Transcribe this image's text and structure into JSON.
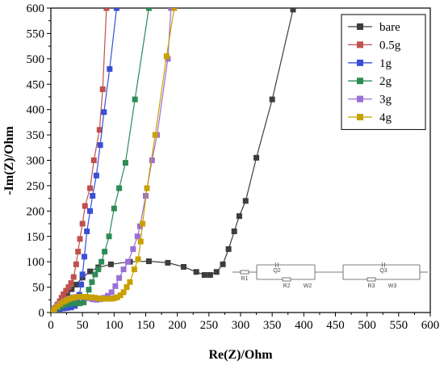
{
  "chart_data": {
    "type": "scatter",
    "xlabel": "Re(Z)/Ohm",
    "ylabel": "-Im(Z)/Ohm",
    "xlim": [
      0,
      600
    ],
    "ylim": [
      0,
      600
    ],
    "x_ticks": [
      "0",
      "50",
      "100",
      "150",
      "200",
      "250",
      "300",
      "350",
      "400",
      "450",
      "500",
      "550",
      "600"
    ],
    "y_ticks": [
      "0",
      "50",
      "100",
      "150",
      "200",
      "250",
      "300",
      "350",
      "400",
      "450",
      "500",
      "550",
      "600"
    ],
    "grid": false,
    "legend_position": "top-right",
    "series": [
      {
        "name": "bare",
        "color": "#3d3d3d",
        "marker": "square",
        "points": [
          [
            2,
            2
          ],
          [
            6,
            8
          ],
          [
            10,
            14
          ],
          [
            15,
            21
          ],
          [
            20,
            29
          ],
          [
            26,
            37
          ],
          [
            33,
            46
          ],
          [
            40,
            55
          ],
          [
            50,
            69
          ],
          [
            62,
            81
          ],
          [
            75,
            89
          ],
          [
            95,
            95
          ],
          [
            125,
            100
          ],
          [
            155,
            101
          ],
          [
            185,
            98
          ],
          [
            210,
            90
          ],
          [
            230,
            80
          ],
          [
            243,
            74
          ],
          [
            252,
            74
          ],
          [
            262,
            80
          ],
          [
            272,
            95
          ],
          [
            281,
            125
          ],
          [
            290,
            160
          ],
          [
            298,
            190
          ],
          [
            308,
            220
          ],
          [
            325,
            305
          ],
          [
            350,
            420
          ],
          [
            383,
            597
          ]
        ]
      },
      {
        "name": "0.5g",
        "color": "#c0504d",
        "marker": "square",
        "points": [
          [
            2,
            2
          ],
          [
            5,
            5
          ],
          [
            8,
            10
          ],
          [
            11,
            16
          ],
          [
            14,
            22
          ],
          [
            17,
            29
          ],
          [
            20,
            36
          ],
          [
            24,
            43
          ],
          [
            28,
            50
          ],
          [
            32,
            58
          ],
          [
            36,
            70
          ],
          [
            40,
            95
          ],
          [
            43,
            120
          ],
          [
            46,
            145
          ],
          [
            50,
            175
          ],
          [
            54,
            210
          ],
          [
            62,
            245
          ],
          [
            68,
            300
          ],
          [
            77,
            360
          ],
          [
            82,
            440
          ],
          [
            88,
            600
          ]
        ]
      },
      {
        "name": "1g",
        "color": "#3a4fd6",
        "marker": "square",
        "points": [
          [
            2,
            1
          ],
          [
            5,
            3
          ],
          [
            9,
            5
          ],
          [
            14,
            7
          ],
          [
            20,
            8
          ],
          [
            26,
            9
          ],
          [
            32,
            10
          ],
          [
            38,
            13
          ],
          [
            42,
            20
          ],
          [
            45,
            35
          ],
          [
            48,
            55
          ],
          [
            50,
            75
          ],
          [
            53,
            110
          ],
          [
            57,
            160
          ],
          [
            62,
            200
          ],
          [
            66,
            230
          ],
          [
            72,
            270
          ],
          [
            78,
            330
          ],
          [
            84,
            395
          ],
          [
            93,
            480
          ],
          [
            104,
            600
          ]
        ]
      },
      {
        "name": "2g",
        "color": "#2e8b57",
        "marker": "square",
        "points": [
          [
            2,
            1
          ],
          [
            6,
            5
          ],
          [
            11,
            9
          ],
          [
            16,
            12
          ],
          [
            22,
            15
          ],
          [
            28,
            17
          ],
          [
            34,
            18
          ],
          [
            40,
            18
          ],
          [
            46,
            18
          ],
          [
            52,
            20
          ],
          [
            56,
            30
          ],
          [
            60,
            45
          ],
          [
            65,
            60
          ],
          [
            70,
            75
          ],
          [
            75,
            85
          ],
          [
            80,
            100
          ],
          [
            85,
            120
          ],
          [
            92,
            150
          ],
          [
            100,
            205
          ],
          [
            108,
            245
          ],
          [
            118,
            295
          ],
          [
            133,
            420
          ],
          [
            155,
            600
          ]
        ]
      },
      {
        "name": "3g",
        "color": "#9b6fd6",
        "marker": "square",
        "points": [
          [
            2,
            2
          ],
          [
            6,
            8
          ],
          [
            10,
            14
          ],
          [
            15,
            18
          ],
          [
            20,
            22
          ],
          [
            25,
            25
          ],
          [
            30,
            28
          ],
          [
            36,
            30
          ],
          [
            42,
            31
          ],
          [
            48,
            31
          ],
          [
            54,
            30
          ],
          [
            60,
            28
          ],
          [
            66,
            26
          ],
          [
            72,
            25
          ],
          [
            78,
            26
          ],
          [
            84,
            29
          ],
          [
            90,
            33
          ],
          [
            96,
            40
          ],
          [
            102,
            52
          ],
          [
            108,
            68
          ],
          [
            115,
            85
          ],
          [
            122,
            100
          ],
          [
            130,
            125
          ],
          [
            137,
            150
          ],
          [
            141,
            170
          ],
          [
            150,
            230
          ],
          [
            160,
            300
          ],
          [
            168,
            350
          ],
          [
            185,
            500
          ],
          [
            190,
            600
          ]
        ]
      },
      {
        "name": "4g",
        "color": "#c8a000",
        "marker": "square",
        "points": [
          [
            2,
            2
          ],
          [
            5,
            6
          ],
          [
            10,
            12
          ],
          [
            15,
            17
          ],
          [
            20,
            21
          ],
          [
            25,
            24
          ],
          [
            30,
            27
          ],
          [
            35,
            29
          ],
          [
            40,
            30
          ],
          [
            45,
            31
          ],
          [
            50,
            31
          ],
          [
            55,
            31
          ],
          [
            60,
            30
          ],
          [
            65,
            30
          ],
          [
            70,
            29
          ],
          [
            75,
            28
          ],
          [
            80,
            27
          ],
          [
            85,
            27
          ],
          [
            90,
            27
          ],
          [
            95,
            27
          ],
          [
            100,
            28
          ],
          [
            105,
            30
          ],
          [
            110,
            34
          ],
          [
            115,
            40
          ],
          [
            120,
            50
          ],
          [
            125,
            60
          ],
          [
            132,
            85
          ],
          [
            138,
            105
          ],
          [
            142,
            140
          ],
          [
            145,
            175
          ],
          [
            152,
            245
          ],
          [
            165,
            350
          ],
          [
            183,
            505
          ],
          [
            195,
            600
          ]
        ]
      }
    ],
    "inset_circuit": {
      "labels": [
        "R1",
        "Q2",
        "R2",
        "W2",
        "Q3",
        "R3",
        "W3"
      ]
    }
  }
}
